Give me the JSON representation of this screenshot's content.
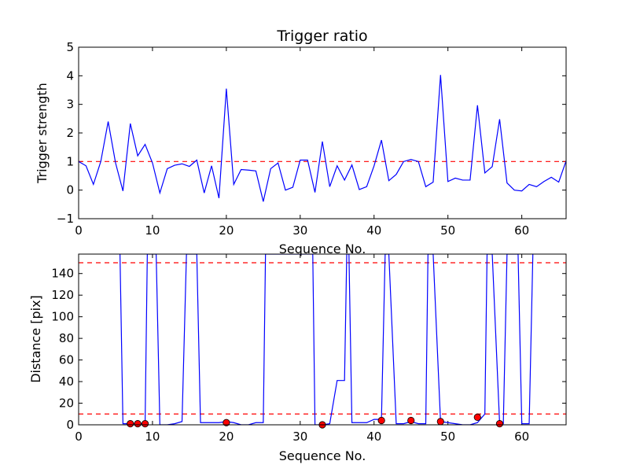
{
  "chart_data": [
    {
      "type": "line",
      "title": "Trigger ratio",
      "xlabel": "Sequence No.",
      "ylabel": "Trigger strength",
      "xlim": [
        0,
        66
      ],
      "ylim": [
        -1,
        5
      ],
      "xticks": [
        0,
        10,
        20,
        30,
        40,
        50,
        60
      ],
      "yticks": [
        -1,
        0,
        1,
        2,
        3,
        4,
        5
      ],
      "grid": false,
      "series": [
        {
          "color": "#0000ff",
          "x": [
            0,
            1,
            2,
            3,
            4,
            5,
            6,
            7,
            8,
            9,
            10,
            11,
            12,
            13,
            14,
            15,
            16,
            17,
            18,
            19,
            20,
            21,
            22,
            23,
            24,
            25,
            26,
            27,
            28,
            29,
            30,
            31,
            32,
            33,
            34,
            35,
            36,
            37,
            38,
            39,
            40,
            41,
            42,
            43,
            44,
            45,
            46,
            47,
            48,
            49,
            50,
            51,
            52,
            53,
            54,
            55,
            56,
            57,
            58,
            59,
            60,
            61,
            62,
            63,
            64,
            65,
            66
          ],
          "values": [
            1.0,
            0.85,
            0.2,
            1.0,
            2.4,
            0.95,
            -0.03,
            2.33,
            1.2,
            1.6,
            0.95,
            -0.1,
            0.75,
            0.87,
            0.92,
            0.83,
            1.05,
            -0.1,
            0.85,
            -0.28,
            3.55,
            0.2,
            0.72,
            0.7,
            0.67,
            -0.4,
            0.75,
            0.95,
            0.0,
            0.1,
            1.05,
            1.05,
            -0.08,
            1.7,
            0.12,
            0.85,
            0.35,
            0.88,
            0.02,
            0.12,
            0.85,
            1.75,
            0.33,
            0.55,
            1.0,
            1.07,
            1.0,
            0.12,
            0.28,
            4.03,
            0.3,
            0.42,
            0.35,
            0.35,
            2.97,
            0.6,
            0.82,
            2.48,
            0.25,
            0.0,
            -0.03,
            0.2,
            0.12,
            0.3,
            0.45,
            0.28,
            1.02
          ]
        }
      ],
      "reference_lines": [
        {
          "y": 1.0,
          "color": "#ff0000",
          "style": "dashed"
        }
      ]
    },
    {
      "type": "line",
      "title": "",
      "xlabel": "Sequence No.",
      "ylabel": "Distance [pix]",
      "xlim": [
        0,
        66
      ],
      "ylim": [
        0,
        158
      ],
      "xticks": [
        0,
        10,
        20,
        30,
        40,
        50,
        60
      ],
      "yticks": [
        0,
        20,
        40,
        60,
        80,
        100,
        120,
        140
      ],
      "grid": false,
      "series": [
        {
          "color": "#0000ff",
          "x": [
            5.6,
            6,
            7,
            8,
            9,
            9.3,
            10,
            10.5,
            11,
            12,
            13,
            14,
            14.6,
            15,
            16,
            16.5,
            17,
            18,
            19,
            20,
            21,
            22,
            23,
            24,
            25,
            25.3,
            31.7,
            32,
            33,
            34,
            35,
            36,
            36.3,
            36.6,
            37,
            38,
            39,
            40,
            41,
            41.5,
            42,
            43,
            44,
            45,
            46,
            47,
            47.3,
            48,
            49,
            50,
            51,
            52,
            53,
            54,
            55,
            55.3,
            56,
            57,
            57.5,
            58,
            59,
            59.5,
            60,
            61,
            61.5
          ],
          "values": [
            158,
            1,
            1,
            1,
            1,
            158,
            158,
            158,
            0,
            0,
            1,
            3,
            158,
            158,
            158,
            2,
            2,
            2,
            2,
            3,
            2,
            0,
            0,
            2,
            2,
            158,
            158,
            0,
            0,
            1,
            41,
            41,
            158,
            158,
            2,
            2,
            2,
            5,
            5,
            158,
            158,
            1,
            1,
            3,
            1,
            1,
            158,
            158,
            3,
            2,
            1,
            0,
            0,
            2,
            10,
            158,
            158,
            1,
            1,
            158,
            158,
            158,
            1,
            1,
            158
          ]
        }
      ],
      "markers": {
        "color": "#ff0000",
        "x": [
          7,
          8,
          9,
          20,
          33,
          41,
          45,
          49,
          54,
          57
        ],
        "y": [
          1,
          1,
          1,
          2,
          0,
          4,
          4,
          3,
          7,
          1
        ]
      },
      "reference_lines": [
        {
          "y": 150,
          "color": "#ff0000",
          "style": "dashed"
        },
        {
          "y": 10,
          "color": "#ff0000",
          "style": "dashed"
        }
      ]
    }
  ]
}
